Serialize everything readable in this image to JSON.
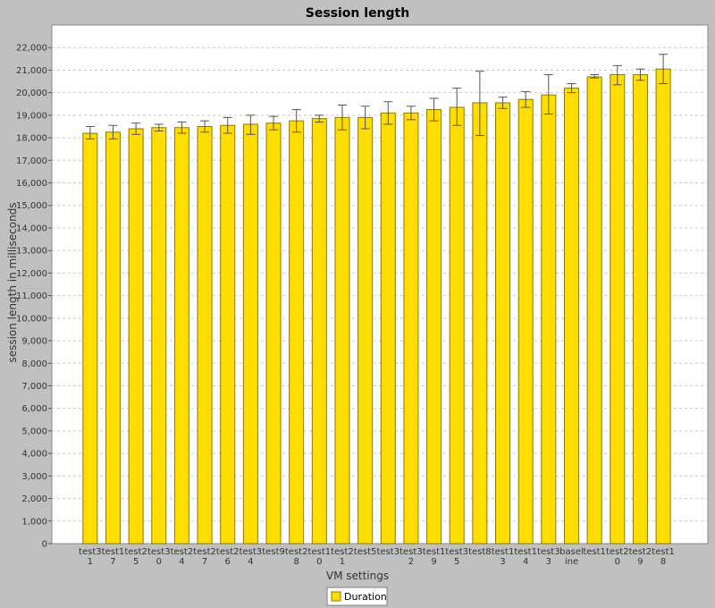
{
  "chart_data": {
    "type": "bar",
    "title": "Session length",
    "xlabel": "VM settings",
    "ylabel": "session length in milliseconds",
    "ylim": [
      0,
      23000
    ],
    "ytick_step": 1000,
    "grid": true,
    "legend_position": "bottom-center",
    "colors": {
      "bar": "#ffdd00",
      "bar_stroke": "#8a7a00",
      "plot_bg": "#ffffff",
      "grid": "#c8c8c8",
      "page_bg": "#c0c0c0",
      "error_bar": "#555555"
    },
    "categories": [
      [
        "test3",
        "1"
      ],
      [
        "test1",
        "7"
      ],
      [
        "test2",
        "5"
      ],
      [
        "test3",
        "0"
      ],
      [
        "test2",
        "4"
      ],
      [
        "test2",
        "7"
      ],
      [
        "test2",
        "6"
      ],
      [
        "test3",
        "4"
      ],
      [
        "test9",
        ""
      ],
      [
        "test2",
        "8"
      ],
      [
        "test1",
        "0"
      ],
      [
        "test2",
        "1"
      ],
      [
        "test5",
        ""
      ],
      [
        "test3",
        ""
      ],
      [
        "test3",
        "2"
      ],
      [
        "test1",
        "9"
      ],
      [
        "test3",
        "5"
      ],
      [
        "test8",
        ""
      ],
      [
        "test1",
        "3"
      ],
      [
        "test1",
        "4"
      ],
      [
        "test3",
        "3"
      ],
      [
        "basel",
        "ine"
      ],
      [
        "test1",
        ""
      ],
      [
        "test2",
        "0"
      ],
      [
        "test2",
        "9"
      ],
      [
        "test1",
        "8"
      ]
    ],
    "series": [
      {
        "name": "Duration",
        "values": [
          18200,
          18250,
          18400,
          18450,
          18450,
          18500,
          18550,
          18600,
          18650,
          18750,
          18850,
          18900,
          18900,
          19100,
          19100,
          19250,
          19350,
          19550,
          19550,
          19700,
          19900,
          20200,
          20700,
          20800,
          20800,
          21050
        ],
        "error_low": [
          17950,
          17950,
          18150,
          18300,
          18200,
          18250,
          18200,
          18150,
          18350,
          18250,
          18700,
          18350,
          18400,
          18600,
          18800,
          18750,
          18550,
          18100,
          19300,
          19350,
          19050,
          20000,
          20650,
          20350,
          20550,
          20400
        ],
        "error_high": [
          18500,
          18550,
          18650,
          18600,
          18700,
          18750,
          18900,
          19000,
          18950,
          19250,
          19000,
          19450,
          19400,
          19600,
          19400,
          19750,
          20200,
          20950,
          19800,
          20050,
          20800,
          20400,
          20800,
          21200,
          21050,
          21700
        ]
      }
    ]
  }
}
